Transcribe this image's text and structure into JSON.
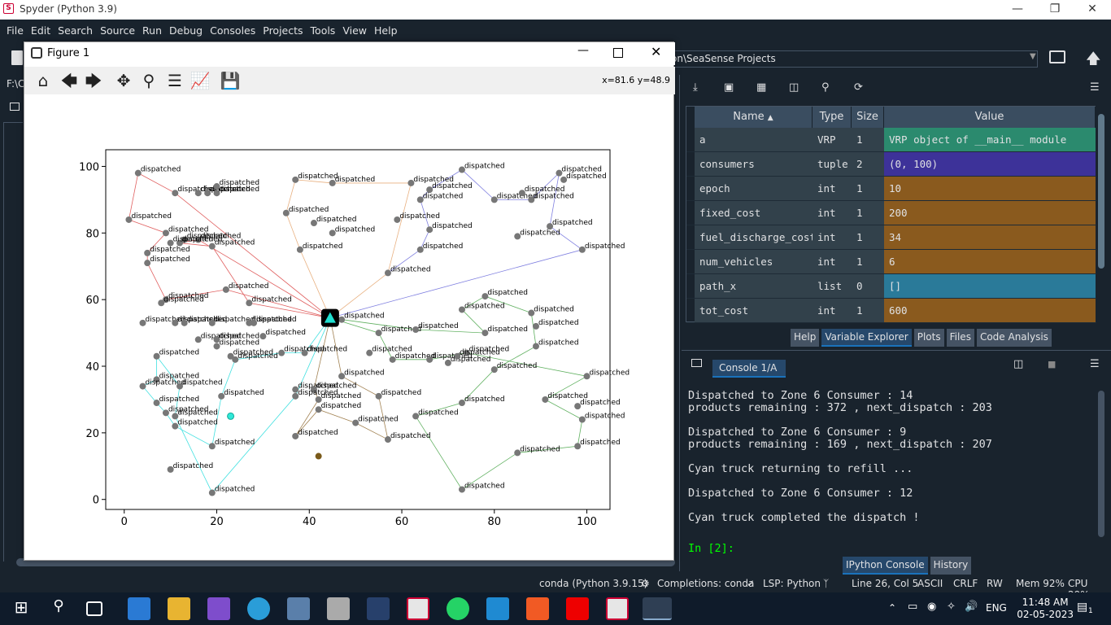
{
  "window": {
    "title": "Spyder (Python 3.9)"
  },
  "menu": [
    "File",
    "Edit",
    "Search",
    "Source",
    "Run",
    "Debug",
    "Consoles",
    "Projects",
    "Tools",
    "View",
    "Help"
  ],
  "path_box": "on\\SeaSense Projects",
  "left_path": "F:\\C",
  "figure": {
    "title": "Figure 1",
    "coords": "x=81.6 y=48.9"
  },
  "chart_data": {
    "type": "scatter",
    "xlim": [
      -4,
      105
    ],
    "ylim": [
      -3,
      105
    ],
    "xticks": [
      0,
      20,
      40,
      60,
      80,
      100
    ],
    "yticks": [
      0,
      20,
      40,
      60,
      80,
      100
    ],
    "depot": {
      "x": 44.5,
      "y": 54.5
    },
    "point_label": "dispatched",
    "points": [
      [
        3,
        98
      ],
      [
        11,
        92
      ],
      [
        16,
        92
      ],
      [
        18,
        92
      ],
      [
        20,
        94
      ],
      [
        20,
        92
      ],
      [
        1,
        84
      ],
      [
        9,
        80
      ],
      [
        13,
        78
      ],
      [
        16,
        78
      ],
      [
        12,
        77
      ],
      [
        10,
        77
      ],
      [
        19,
        76
      ],
      [
        5,
        74
      ],
      [
        5,
        71
      ],
      [
        22,
        63
      ],
      [
        9,
        60
      ],
      [
        8,
        59
      ],
      [
        27,
        59
      ],
      [
        4,
        53
      ],
      [
        11,
        53
      ],
      [
        13,
        53
      ],
      [
        19,
        53
      ],
      [
        27,
        53
      ],
      [
        28,
        53
      ],
      [
        16,
        48
      ],
      [
        20,
        48
      ],
      [
        20,
        46
      ],
      [
        23,
        43
      ],
      [
        24,
        42
      ],
      [
        30,
        49
      ],
      [
        34,
        44
      ],
      [
        39,
        44
      ],
      [
        7,
        43
      ],
      [
        7,
        36
      ],
      [
        4,
        34
      ],
      [
        12,
        34
      ],
      [
        21,
        31
      ],
      [
        7,
        29
      ],
      [
        9,
        26
      ],
      [
        11,
        25
      ],
      [
        11,
        22
      ],
      [
        19,
        16
      ],
      [
        10,
        9
      ],
      [
        19,
        2
      ],
      [
        37,
        96
      ],
      [
        45,
        95
      ],
      [
        35,
        86
      ],
      [
        41,
        83
      ],
      [
        45,
        80
      ],
      [
        38,
        75
      ],
      [
        47,
        54
      ],
      [
        55,
        50
      ],
      [
        63,
        51
      ],
      [
        53,
        44
      ],
      [
        58,
        42
      ],
      [
        66,
        42
      ],
      [
        70,
        41
      ],
      [
        74,
        44
      ],
      [
        47,
        37
      ],
      [
        37,
        33
      ],
      [
        41,
        33
      ],
      [
        37,
        31
      ],
      [
        42,
        30
      ],
      [
        55,
        31
      ],
      [
        42,
        27
      ],
      [
        37,
        19
      ],
      [
        50,
        23
      ],
      [
        57,
        18
      ],
      [
        66,
        93
      ],
      [
        62,
        95
      ],
      [
        64,
        90
      ],
      [
        59,
        84
      ],
      [
        66,
        81
      ],
      [
        64,
        75
      ],
      [
        57,
        68
      ],
      [
        73,
        99
      ],
      [
        80,
        90
      ],
      [
        86,
        92
      ],
      [
        88,
        90
      ],
      [
        94,
        98
      ],
      [
        95,
        96
      ],
      [
        92,
        82
      ],
      [
        85,
        79
      ],
      [
        99,
        75
      ],
      [
        78,
        61
      ],
      [
        73,
        57
      ],
      [
        88,
        56
      ],
      [
        89,
        52
      ],
      [
        78,
        50
      ],
      [
        89,
        46
      ],
      [
        72,
        43
      ],
      [
        80,
        39
      ],
      [
        63,
        25
      ],
      [
        73,
        29
      ],
      [
        100,
        37
      ],
      [
        91,
        30
      ],
      [
        98,
        28
      ],
      [
        99,
        24
      ],
      [
        85,
        14
      ],
      [
        98,
        16
      ],
      [
        73,
        3
      ]
    ],
    "routes": [
      {
        "color": "#e06060",
        "path": [
          [
            44.5,
            54.5
          ],
          [
            22,
            63
          ],
          [
            9,
            60
          ],
          [
            5,
            71
          ],
          [
            5,
            74
          ],
          [
            9,
            80
          ],
          [
            1,
            84
          ],
          [
            3,
            98
          ],
          [
            11,
            92
          ],
          [
            44.5,
            54.5
          ]
        ]
      },
      {
        "color": "#e06060",
        "path": [
          [
            44.5,
            54.5
          ],
          [
            27,
            59
          ],
          [
            19,
            76
          ],
          [
            12,
            77
          ],
          [
            16,
            78
          ],
          [
            44.5,
            54.5
          ]
        ]
      },
      {
        "color": "#e8b080",
        "path": [
          [
            44.5,
            54.5
          ],
          [
            38,
            75
          ],
          [
            35,
            86
          ],
          [
            37,
            96
          ],
          [
            45,
            95
          ],
          [
            62,
            95
          ],
          [
            57,
            68
          ],
          [
            44.5,
            54.5
          ]
        ]
      },
      {
        "color": "#8080e0",
        "path": [
          [
            44.5,
            54.5
          ],
          [
            99,
            75
          ],
          [
            92,
            82
          ],
          [
            94,
            98
          ],
          [
            88,
            90
          ],
          [
            80,
            90
          ],
          [
            73,
            99
          ],
          [
            66,
            93
          ],
          [
            64,
            90
          ],
          [
            66,
            81
          ],
          [
            64,
            75
          ],
          [
            57,
            68
          ]
        ]
      },
      {
        "color": "#60b060",
        "path": [
          [
            44.5,
            54.5
          ],
          [
            63,
            51
          ],
          [
            78,
            50
          ],
          [
            73,
            57
          ],
          [
            78,
            61
          ],
          [
            88,
            56
          ],
          [
            89,
            46
          ],
          [
            80,
            39
          ],
          [
            73,
            29
          ],
          [
            63,
            25
          ],
          [
            73,
            3
          ],
          [
            85,
            14
          ],
          [
            98,
            16
          ],
          [
            99,
            24
          ],
          [
            91,
            30
          ],
          [
            100,
            37
          ],
          [
            74,
            44
          ],
          [
            66,
            42
          ],
          [
            58,
            42
          ],
          [
            55,
            50
          ],
          [
            44.5,
            54.5
          ]
        ]
      },
      {
        "color": "#40e0e0",
        "path": [
          [
            44.5,
            54.5
          ],
          [
            39,
            44
          ],
          [
            34,
            44
          ],
          [
            24,
            42
          ],
          [
            21,
            31
          ],
          [
            19,
            16
          ],
          [
            11,
            22
          ],
          [
            9,
            26
          ],
          [
            7,
            29
          ],
          [
            4,
            34
          ],
          [
            7,
            36
          ],
          [
            7,
            43
          ],
          [
            12,
            34
          ],
          [
            11,
            25
          ],
          [
            19,
            2
          ],
          [
            37,
            31
          ],
          [
            44.5,
            54.5
          ]
        ]
      },
      {
        "color": "#a08050",
        "path": [
          [
            44.5,
            54.5
          ],
          [
            47,
            37
          ],
          [
            55,
            31
          ],
          [
            57,
            18
          ],
          [
            50,
            23
          ],
          [
            42,
            27
          ],
          [
            37,
            19
          ],
          [
            42,
            30
          ],
          [
            41,
            33
          ],
          [
            44.5,
            54.5
          ]
        ]
      }
    ],
    "cyan_truck": {
      "x": 23,
      "y": 25
    },
    "brown_truck": {
      "x": 42,
      "y": 13
    }
  },
  "varexp": {
    "headers": [
      "Name",
      "Type",
      "Size",
      "Value"
    ],
    "rows": [
      {
        "name": "a",
        "type": "VRP",
        "size": "1",
        "value": "VRP object of __main__ module",
        "color": "#2b8a6e"
      },
      {
        "name": "consumers",
        "type": "tuple",
        "size": "2",
        "value": "(0, 100)",
        "color": "#3d3299"
      },
      {
        "name": "epoch",
        "type": "int",
        "size": "1",
        "value": "10",
        "color": "#8a5a1e"
      },
      {
        "name": "fixed_cost",
        "type": "int",
        "size": "1",
        "value": "200",
        "color": "#8a5a1e"
      },
      {
        "name": "fuel_discharge_cost",
        "type": "int",
        "size": "1",
        "value": "34",
        "color": "#8a5a1e"
      },
      {
        "name": "num_vehicles",
        "type": "int",
        "size": "1",
        "value": "6",
        "color": "#8a5a1e"
      },
      {
        "name": "path_x",
        "type": "list",
        "size": "0",
        "value": "[]",
        "color": "#2a7a99"
      },
      {
        "name": "tot_cost",
        "type": "int",
        "size": "1",
        "value": "600",
        "color": "#8a5a1e"
      }
    ],
    "tabs": [
      "Help",
      "Variable Explorer",
      "Plots",
      "Files",
      "Code Analysis"
    ]
  },
  "console": {
    "tab": "Console 1/A",
    "lines": [
      "Dispatched to Zone 6 Consumer : 14",
      "products remaining : 372 , next_dispatch : 203",
      "",
      "Dispatched to Zone 6 Consumer : 9",
      "products remaining : 169 , next_dispatch : 207",
      "",
      "Cyan truck returning to refill ...",
      "",
      "Dispatched to Zone 6 Consumer : 12",
      "",
      "Cyan truck completed the dispatch !",
      ""
    ],
    "prompt": "In [2]:",
    "bottom_tabs": [
      "IPython Console",
      "History"
    ]
  },
  "status": {
    "conda": "conda (Python 3.9.15)",
    "completions": "Completions: conda",
    "lsp": "LSP: Python",
    "pos": "Line 26, Col 5",
    "enc": "ASCII",
    "eol": "CRLF",
    "rw": "RW",
    "mem": "Mem 92%",
    "cpu": "CPU 29%"
  },
  "taskbar": {
    "lang": "ENG",
    "time": "11:48 AM",
    "date": "02-05-2023",
    "notif": "1"
  }
}
